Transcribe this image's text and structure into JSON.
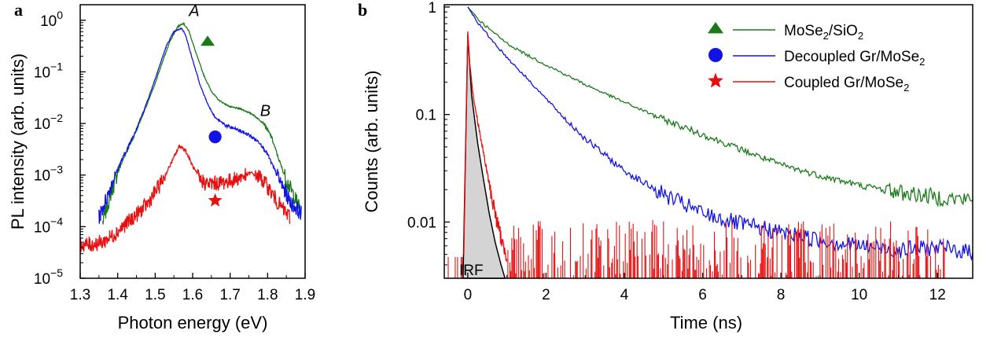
{
  "chart_data": [
    {
      "panel": "a",
      "type": "line",
      "xlabel": "Photon energy (eV)",
      "ylabel": "PL intensity (arb. units)",
      "xlim": [
        1.3,
        1.9
      ],
      "ylim": [
        1e-05,
        2
      ],
      "yscale": "log",
      "x_ticks": [
        "1.3",
        "1.4",
        "1.5",
        "1.6",
        "1.7",
        "1.8",
        "1.9"
      ],
      "y_ticks": [
        {
          "base": "10",
          "exp": "0"
        },
        {
          "base": "10",
          "exp": "−1"
        },
        {
          "base": "10",
          "exp": "−2"
        },
        {
          "base": "10",
          "exp": "−3"
        },
        {
          "base": "10",
          "exp": "−4"
        },
        {
          "base": "10",
          "exp": "−5"
        }
      ],
      "annotations": [
        {
          "text": "A",
          "x": 1.59,
          "y": 1.2
        },
        {
          "text": "B",
          "x": 1.78,
          "y": 0.014
        }
      ],
      "series": [
        {
          "color": "#1a7a1a",
          "marker": "triangle",
          "marker_at": [
            1.64,
            0.38
          ],
          "x": [
            1.36,
            1.38,
            1.4,
            1.42,
            1.44,
            1.46,
            1.48,
            1.5,
            1.52,
            1.54,
            1.56,
            1.575,
            1.59,
            1.61,
            1.63,
            1.65,
            1.67,
            1.7,
            1.73,
            1.76,
            1.79,
            1.81,
            1.83,
            1.85,
            1.87,
            1.89
          ],
          "y": [
            0.00012,
            0.0004,
            0.0011,
            0.0025,
            0.005,
            0.011,
            0.025,
            0.06,
            0.16,
            0.4,
            0.75,
            0.88,
            0.62,
            0.22,
            0.085,
            0.042,
            0.028,
            0.021,
            0.019,
            0.015,
            0.01,
            0.0055,
            0.002,
            0.0008,
            0.0004,
            0.0002
          ]
        },
        {
          "color": "#1212e6",
          "marker": "circle",
          "marker_at": [
            1.66,
            0.0055
          ],
          "x": [
            1.35,
            1.37,
            1.39,
            1.41,
            1.43,
            1.45,
            1.47,
            1.49,
            1.51,
            1.53,
            1.55,
            1.57,
            1.58,
            1.6,
            1.62,
            1.64,
            1.66,
            1.69,
            1.72,
            1.75,
            1.78,
            1.8,
            1.82,
            1.84,
            1.86,
            1.89
          ],
          "y": [
            0.00015,
            0.00035,
            0.0009,
            0.0019,
            0.0038,
            0.008,
            0.018,
            0.045,
            0.12,
            0.32,
            0.6,
            0.7,
            0.55,
            0.17,
            0.055,
            0.024,
            0.013,
            0.009,
            0.0075,
            0.006,
            0.0042,
            0.0025,
            0.0012,
            0.0006,
            0.0003,
            0.00018
          ]
        },
        {
          "color": "#e61010",
          "marker": "star",
          "marker_at": [
            1.66,
            0.00032
          ],
          "x": [
            1.3,
            1.33,
            1.36,
            1.39,
            1.42,
            1.45,
            1.48,
            1.51,
            1.53,
            1.55,
            1.565,
            1.58,
            1.6,
            1.62,
            1.64,
            1.67,
            1.7,
            1.73,
            1.755,
            1.78,
            1.8,
            1.82,
            1.84,
            1.86
          ],
          "y": [
            4.5e-05,
            4.5e-05,
            5e-05,
            7e-05,
            0.00011,
            0.00017,
            0.00028,
            0.0006,
            0.0011,
            0.0022,
            0.0037,
            0.0031,
            0.0015,
            0.0008,
            0.00068,
            0.0007,
            0.00077,
            0.00092,
            0.0011,
            0.0009,
            0.0006,
            0.00035,
            0.00022,
            0.00015
          ]
        }
      ]
    },
    {
      "panel": "b",
      "type": "line",
      "xlabel": "Time (ns)",
      "ylabel": "Counts (arb. units)",
      "xlim": [
        -0.6,
        12.9
      ],
      "ylim": [
        0.003,
        1.05
      ],
      "yscale": "log",
      "x_ticks": [
        "0",
        "2",
        "4",
        "6",
        "8",
        "10",
        "12"
      ],
      "y_ticks": [
        "1",
        "0.1",
        "0.01"
      ],
      "irf_label": "IRF",
      "legend": {
        "placement": "top-right",
        "entries": [
          {
            "main": "MoSe",
            "sub": "2",
            "rest": "/SiO",
            "sub2": "2",
            "color": "#1a7a1a",
            "marker": "triangle"
          },
          {
            "main": "Decoupled Gr/MoSe",
            "sub": "2",
            "rest": "",
            "sub2": "",
            "color": "#1212e6",
            "marker": "circle"
          },
          {
            "main": "Coupled Gr/MoSe",
            "sub": "2",
            "rest": "",
            "sub2": "",
            "color": "#e61010",
            "marker": "star"
          }
        ]
      },
      "series": [
        {
          "color": "#1a7a1a",
          "x": [
            0.0,
            0.3,
            0.6,
            1.0,
            1.5,
            2.0,
            3.0,
            4.0,
            5.0,
            6.0,
            7.0,
            8.0,
            9.0,
            10.0,
            11.0,
            12.0,
            12.9
          ],
          "y": [
            1.0,
            0.75,
            0.6,
            0.46,
            0.36,
            0.29,
            0.19,
            0.13,
            0.09,
            0.065,
            0.047,
            0.034,
            0.027,
            0.022,
            0.019,
            0.017,
            0.016
          ]
        },
        {
          "color": "#1212e6",
          "x": [
            0.0,
            0.3,
            0.6,
            1.0,
            1.5,
            2.0,
            2.5,
            3.0,
            3.5,
            4.0,
            5.0,
            6.0,
            7.0,
            8.0,
            9.0,
            10.0,
            11.0,
            12.0,
            12.9
          ],
          "y": [
            1.0,
            0.68,
            0.5,
            0.34,
            0.22,
            0.14,
            0.09,
            0.06,
            0.042,
            0.03,
            0.018,
            0.012,
            0.0095,
            0.008,
            0.0068,
            0.006,
            0.0055,
            0.0058,
            0.0052
          ]
        },
        {
          "color": "#e61010",
          "x": [
            -0.1,
            0.0,
            0.05,
            0.15,
            0.3,
            0.45,
            0.6,
            0.75,
            0.9,
            1.0
          ],
          "y": [
            0.005,
            0.6,
            0.3,
            0.14,
            0.07,
            0.035,
            0.018,
            0.01,
            0.006,
            0.005
          ]
        }
      ],
      "noise_floor": 0.0045,
      "irf": {
        "x": [
          -0.12,
          0.0,
          0.1,
          0.25,
          0.4,
          0.55,
          0.7,
          0.85,
          0.95
        ],
        "y": [
          0.003,
          0.55,
          0.15,
          0.055,
          0.025,
          0.012,
          0.0065,
          0.004,
          0.003
        ]
      }
    }
  ]
}
